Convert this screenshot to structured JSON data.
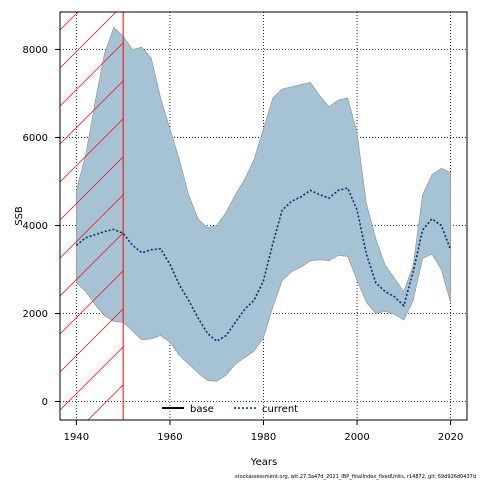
{
  "chart_data": {
    "type": "line",
    "xlabel": "Years",
    "ylabel": "SSB",
    "xlim": [
      1936.5,
      2023.5
    ],
    "ylim": [
      -420,
      8850
    ],
    "x_ticks": [
      1940,
      1960,
      1980,
      2000,
      2020
    ],
    "y_ticks": [
      0,
      2000,
      4000,
      6000,
      8000
    ],
    "grid": true,
    "grid_style": "dotted",
    "legend_position": "bottom-center",
    "shaded_period": [
      1936.5,
      1950
    ],
    "colors": {
      "band": "#a5c3d5",
      "band_edge": "#8f8f8f",
      "current_line": "#08306b",
      "shade_hatch": "#ff0000"
    },
    "series": [
      {
        "name": "current",
        "style": "dotted",
        "x": [
          1940,
          1942,
          1944,
          1946,
          1948,
          1950,
          1952,
          1954,
          1956,
          1958,
          1960,
          1962,
          1964,
          1966,
          1968,
          1970,
          1972,
          1974,
          1976,
          1978,
          1980,
          1982,
          1984,
          1986,
          1988,
          1990,
          1992,
          1994,
          1996,
          1998,
          2000,
          2002,
          2004,
          2006,
          2008,
          2010,
          2012,
          2014,
          2016,
          2018,
          2020
        ],
        "y": [
          3550,
          3720,
          3790,
          3860,
          3910,
          3820,
          3550,
          3380,
          3450,
          3470,
          3120,
          2650,
          2300,
          1900,
          1550,
          1370,
          1500,
          1800,
          2100,
          2300,
          2750,
          3600,
          4350,
          4550,
          4650,
          4800,
          4700,
          4620,
          4800,
          4850,
          4350,
          3350,
          2700,
          2500,
          2380,
          2180,
          2950,
          3900,
          4150,
          4000,
          3450
        ]
      },
      {
        "name": "base",
        "style": "solid",
        "x": [],
        "y": []
      }
    ],
    "confidence_band": {
      "x": [
        1940,
        1942,
        1944,
        1946,
        1948,
        1950,
        1952,
        1954,
        1956,
        1958,
        1960,
        1962,
        1964,
        1966,
        1968,
        1970,
        1972,
        1974,
        1976,
        1978,
        1980,
        1982,
        1984,
        1986,
        1988,
        1990,
        1992,
        1994,
        1996,
        1998,
        2000,
        2002,
        2004,
        2006,
        2008,
        2010,
        2012,
        2014,
        2016,
        2018,
        2020
      ],
      "upper": [
        4800,
        5600,
        6800,
        7900,
        8500,
        8300,
        8000,
        8050,
        7800,
        6900,
        6200,
        5500,
        4700,
        4150,
        3950,
        4000,
        4300,
        4700,
        5050,
        5500,
        6200,
        6900,
        7100,
        7150,
        7200,
        7250,
        6950,
        6700,
        6850,
        6900,
        6100,
        4500,
        3700,
        3100,
        2800,
        2500,
        3100,
        4700,
        5150,
        5300,
        5200
      ],
      "lower": [
        2700,
        2500,
        2200,
        1950,
        1820,
        1800,
        1600,
        1400,
        1420,
        1500,
        1350,
        1050,
        850,
        650,
        480,
        460,
        600,
        850,
        1000,
        1150,
        1450,
        2150,
        2750,
        2950,
        3050,
        3200,
        3220,
        3200,
        3320,
        3300,
        2750,
        2250,
        2000,
        2050,
        1980,
        1850,
        2300,
        3250,
        3350,
        3000,
        2250
      ]
    }
  },
  "legend": {
    "base_label": "base",
    "current_label": "current"
  },
  "footer": {
    "text": "stockassessment.org, wit.27.3a47d_2021_IBP_finalIndex_fixedUnits, r14872, git: 69d926d0437d"
  }
}
